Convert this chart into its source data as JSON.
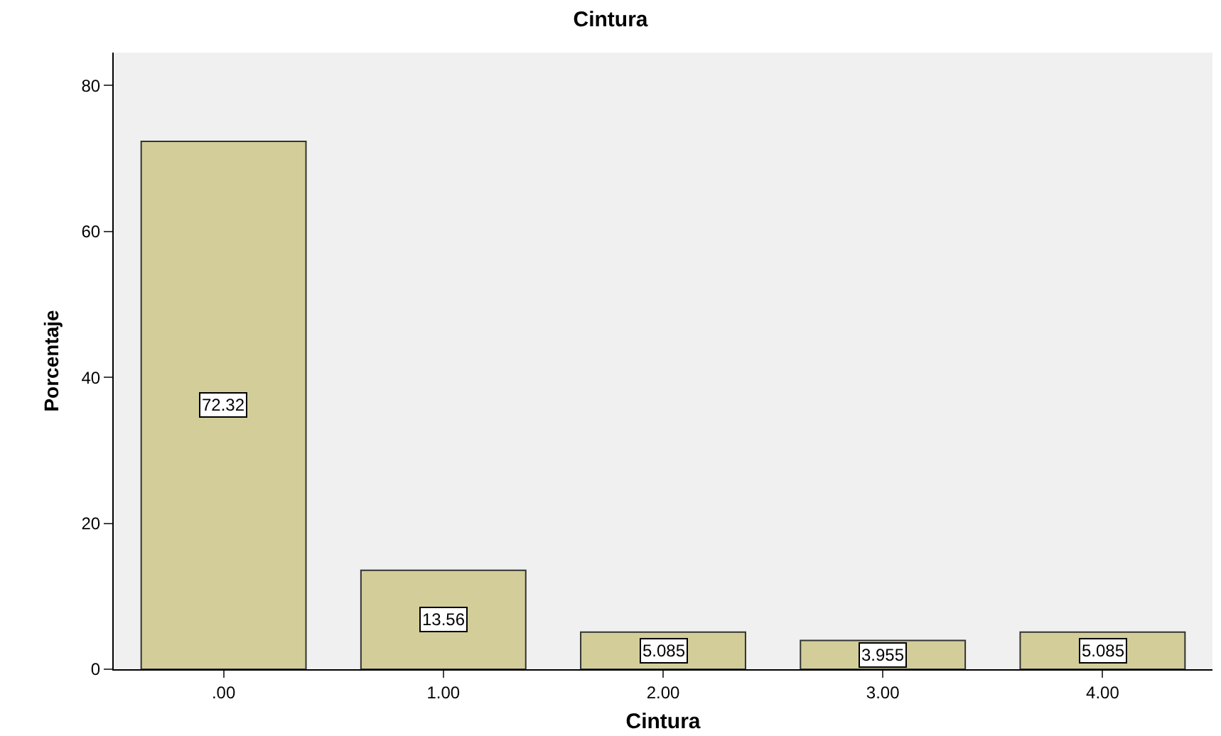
{
  "chart_data": {
    "type": "bar",
    "title": "Cintura",
    "xlabel": "Cintura",
    "ylabel": "Porcentaje",
    "categories": [
      ".00",
      "1.00",
      "2.00",
      "3.00",
      "4.00"
    ],
    "values": [
      72.32,
      13.56,
      5.085,
      3.955,
      5.085
    ],
    "color": "#d3ce99",
    "ylim": [
      0,
      84.5
    ],
    "yticks": [
      0,
      20,
      40,
      60,
      80
    ],
    "data_labels": true,
    "grid": false,
    "legend": false
  }
}
